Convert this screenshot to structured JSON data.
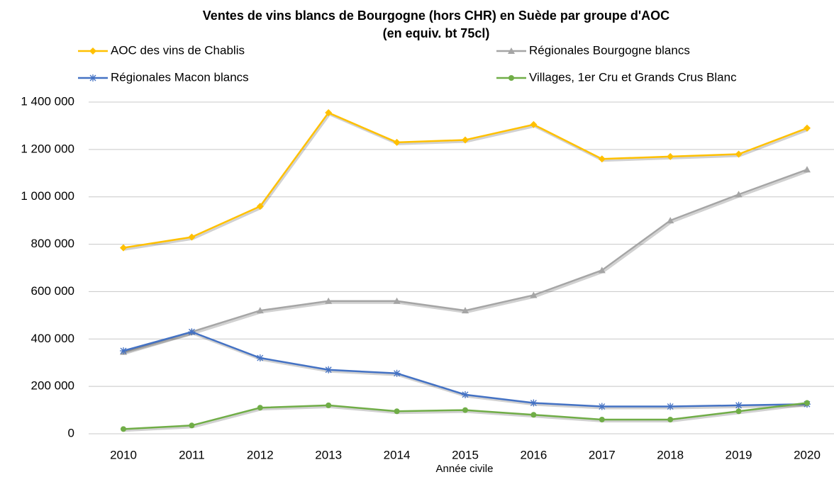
{
  "chart_data": {
    "type": "line",
    "title": "Ventes de vins blancs de Bourgogne (hors CHR) en Suède par groupe d'AOC",
    "subtitle": "(en equiv. bt 75cl)",
    "x_label": "Année civile",
    "categories": [
      "2010",
      "2011",
      "2012",
      "2013",
      "2014",
      "2015",
      "2016",
      "2017",
      "2018",
      "2019",
      "2020"
    ],
    "series": [
      {
        "name": "AOC des vins de Chablis",
        "color": "#FFC000",
        "marker": "diamond",
        "values": [
          785000,
          830000,
          960000,
          1355000,
          1230000,
          1240000,
          1305000,
          1160000,
          1170000,
          1180000,
          1290000
        ]
      },
      {
        "name": "Régionales Bourgogne blancs",
        "color": "#A5A5A5",
        "marker": "triangle",
        "values": [
          345000,
          430000,
          520000,
          560000,
          560000,
          520000,
          585000,
          690000,
          900000,
          1010000,
          1115000
        ]
      },
      {
        "name": "Régionales Macon blancs",
        "color": "#4472C4",
        "marker": "asterisk",
        "values": [
          350000,
          430000,
          320000,
          270000,
          255000,
          165000,
          130000,
          115000,
          115000,
          120000,
          125000
        ]
      },
      {
        "name": "Villages, 1er Cru et Grands Crus Blanc",
        "color": "#70AD47",
        "marker": "circle",
        "values": [
          20000,
          35000,
          110000,
          120000,
          95000,
          100000,
          80000,
          60000,
          60000,
          95000,
          130000
        ]
      }
    ],
    "ylim": [
      0,
      1400000
    ],
    "yticks": [
      0,
      {
        "value": 200000,
        "label": "200 000"
      },
      {
        "value": 400000,
        "label": "400 000"
      },
      {
        "value": 600000,
        "label": "600 000"
      },
      {
        "value": 800000,
        "label": "800 000"
      },
      {
        "value": 1000000,
        "label": "1 000 000"
      },
      {
        "value": 1200000,
        "label": "1 200 000"
      },
      {
        "value": 1400000,
        "label": "1 400 000"
      }
    ],
    "grid": true,
    "legend": "top"
  }
}
